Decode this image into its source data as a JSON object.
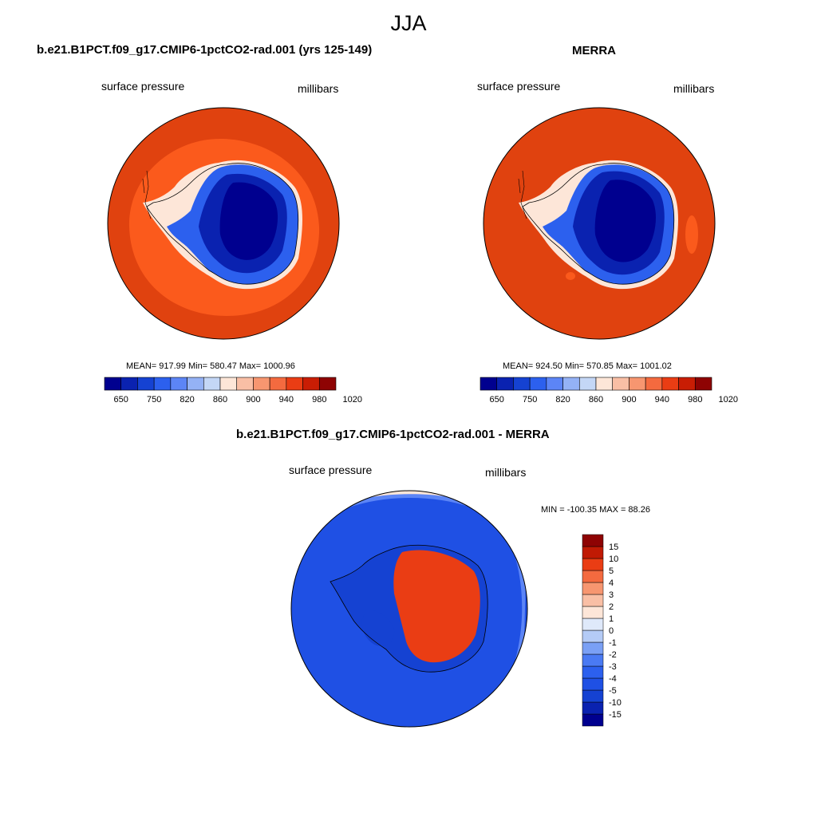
{
  "title": "JJA",
  "panels": [
    {
      "id": "model",
      "title": "b.e21.B1PCT.f09_g17.CMIP6-1pctCO2-rad.001 (yrs 125-149)",
      "left_label": "surface pressure",
      "right_label": "millibars",
      "stats": "MEAN= 917.99  Min= 580.47  Max= 1000.96"
    },
    {
      "id": "obs",
      "title": "MERRA",
      "left_label": "surface pressure",
      "right_label": "millibars",
      "stats": "MEAN= 924.50  Min= 570.85  Max= 1001.02"
    },
    {
      "id": "diff",
      "title": "b.e21.B1PCT.f09_g17.CMIP6-1pctCO2-rad.001 - MERRA",
      "left_label": "surface pressure",
      "right_label": "millibars",
      "stats": "MIN = -100.35 MAX =  88.26"
    }
  ],
  "colorbar_abs": {
    "colors": [
      "#00008f",
      "#0a22b0",
      "#1542d2",
      "#2c60ee",
      "#5c85f6",
      "#94b2f5",
      "#c4d7f6",
      "#fde6d8",
      "#f9bfa5",
      "#f79670",
      "#f46a3f",
      "#ea3d14",
      "#c91d04",
      "#8e0303"
    ],
    "tick_labels": [
      "650",
      "750",
      "820",
      "860",
      "900",
      "940",
      "980",
      "1020"
    ]
  },
  "colorbar_diff": {
    "colors": [
      "#00008f",
      "#0a22b0",
      "#1542d2",
      "#1f50e4",
      "#2c60ee",
      "#4a7af3",
      "#7aa0f5",
      "#b4cbf6",
      "#dfe9fa",
      "#fde6d8",
      "#f9bfa5",
      "#f79670",
      "#f46a3f",
      "#ea3d14",
      "#c01a04",
      "#8e0303"
    ],
    "tick_labels": [
      "15",
      "10",
      "5",
      "4",
      "3",
      "2",
      "1",
      "0",
      "-1",
      "-2",
      "-3",
      "-4",
      "-5",
      "-10",
      "-15"
    ]
  },
  "map_colors": {
    "ocean_far": "#e0420f",
    "ocean_near": "#fb5a1c",
    "coast_white": "#fde6d8",
    "ice_shelf": "#2c60ee",
    "ice_mid": "#0a22b0",
    "ice_core": "#00008f",
    "diff_ocean": "#1f50e4",
    "diff_ocean_light": "#5c85f6",
    "diff_land_red": "#ea3d14",
    "diff_land_blue": "#1542d2"
  }
}
